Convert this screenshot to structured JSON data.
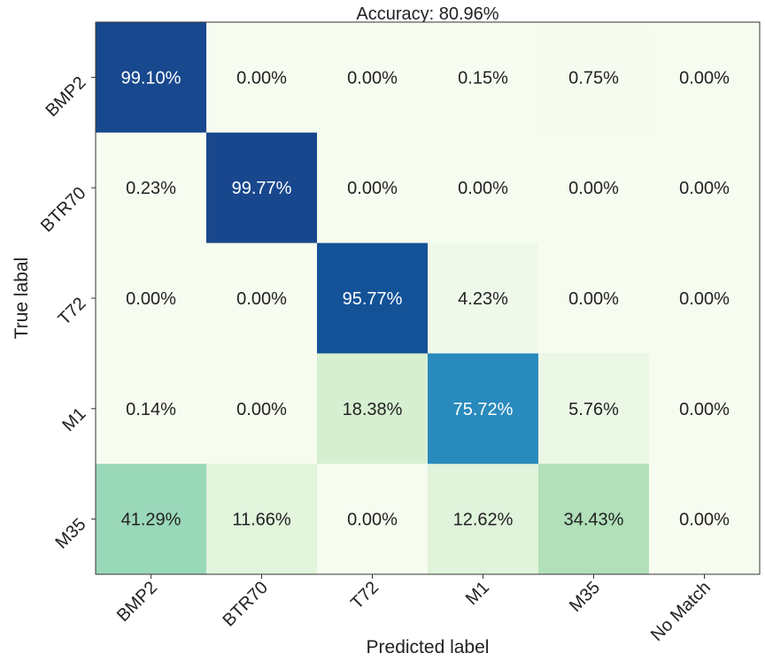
{
  "chart_data": {
    "type": "heatmap",
    "title": "Accuracy: 80.96%",
    "xlabel": "Predicted label",
    "ylabel": "True labal",
    "x_categories": [
      "BMP2",
      "BTR70",
      "T72",
      "M1",
      "M35",
      "No Match"
    ],
    "y_categories": [
      "BMP2",
      "BTR70",
      "T72",
      "M1",
      "M35"
    ],
    "values": [
      [
        99.1,
        0.0,
        0.0,
        0.15,
        0.75,
        0.0
      ],
      [
        0.23,
        99.77,
        0.0,
        0.0,
        0.0,
        0.0
      ],
      [
        0.0,
        0.0,
        95.77,
        4.23,
        0.0,
        0.0
      ],
      [
        0.14,
        0.0,
        18.38,
        75.72,
        5.76,
        0.0
      ],
      [
        41.29,
        11.66,
        0.0,
        12.62,
        34.43,
        0.0
      ]
    ],
    "labels": [
      [
        "99.10%",
        "0.00%",
        "0.00%",
        "0.15%",
        "0.75%",
        "0.00%"
      ],
      [
        "0.23%",
        "99.77%",
        "0.00%",
        "0.00%",
        "0.00%",
        "0.00%"
      ],
      [
        "0.00%",
        "0.00%",
        "95.77%",
        "4.23%",
        "0.00%",
        "0.00%"
      ],
      [
        "0.14%",
        "0.00%",
        "18.38%",
        "75.72%",
        "5.76%",
        "0.00%"
      ],
      [
        "41.29%",
        "11.66%",
        "0.00%",
        "12.62%",
        "34.43%",
        "0.00%"
      ]
    ],
    "colormap": "GnBu",
    "value_range": [
      0,
      100
    ]
  }
}
